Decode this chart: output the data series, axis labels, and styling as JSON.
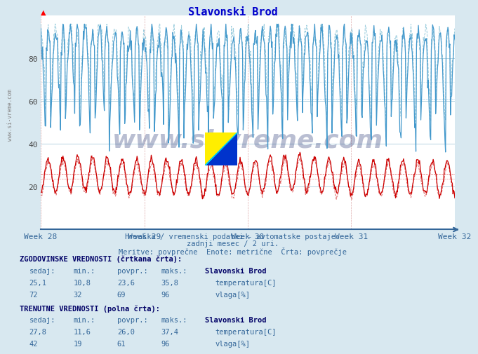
{
  "title": "Slavonski Brod",
  "title_color": "#0000cc",
  "bg_color": "#d8e8f0",
  "plot_bg_color": "#ffffff",
  "subtitle1": "Hrvaška / vremenski podatki - avtomatske postaje.",
  "subtitle2": "zadnji mesec / 2 uri.",
  "subtitle3": "Meritve: povprečne  Enote: metrične  Črta: povprečje",
  "xlabel_weeks": [
    "Week 28",
    "Week 29",
    "Week 30",
    "Week 31",
    "Week 32"
  ],
  "ylim": [
    0,
    100
  ],
  "yticks": [
    20,
    40,
    60,
    80
  ],
  "grid_color_h": "#aaccdd",
  "grid_color_v_red": "#ddaaaa",
  "grid_color_v_blue": "#aabbcc",
  "temp_color_solid": "#cc0000",
  "temp_color_dash": "#dd6666",
  "humidity_color_solid": "#4499cc",
  "humidity_color_dash": "#99ccdd",
  "watermark": "www.si-vreme.com",
  "n_points": 672,
  "hist_temp_sedaj": "25,1",
  "hist_temp_min": "10,8",
  "hist_temp_povpr": "23,6",
  "hist_temp_maks": "35,8",
  "hist_vlaga_sedaj": "72",
  "hist_vlaga_min": "32",
  "hist_vlaga_povpr": "69",
  "hist_vlaga_maks": "96",
  "curr_temp_sedaj": "27,8",
  "curr_temp_min": "11,6",
  "curr_temp_povpr": "26,0",
  "curr_temp_maks": "37,4",
  "curr_vlaga_sedaj": "42",
  "curr_vlaga_min": "19",
  "curr_vlaga_povpr": "61",
  "curr_vlaga_maks": "96",
  "table_bold_color": "#000066",
  "table_data_color": "#336699"
}
